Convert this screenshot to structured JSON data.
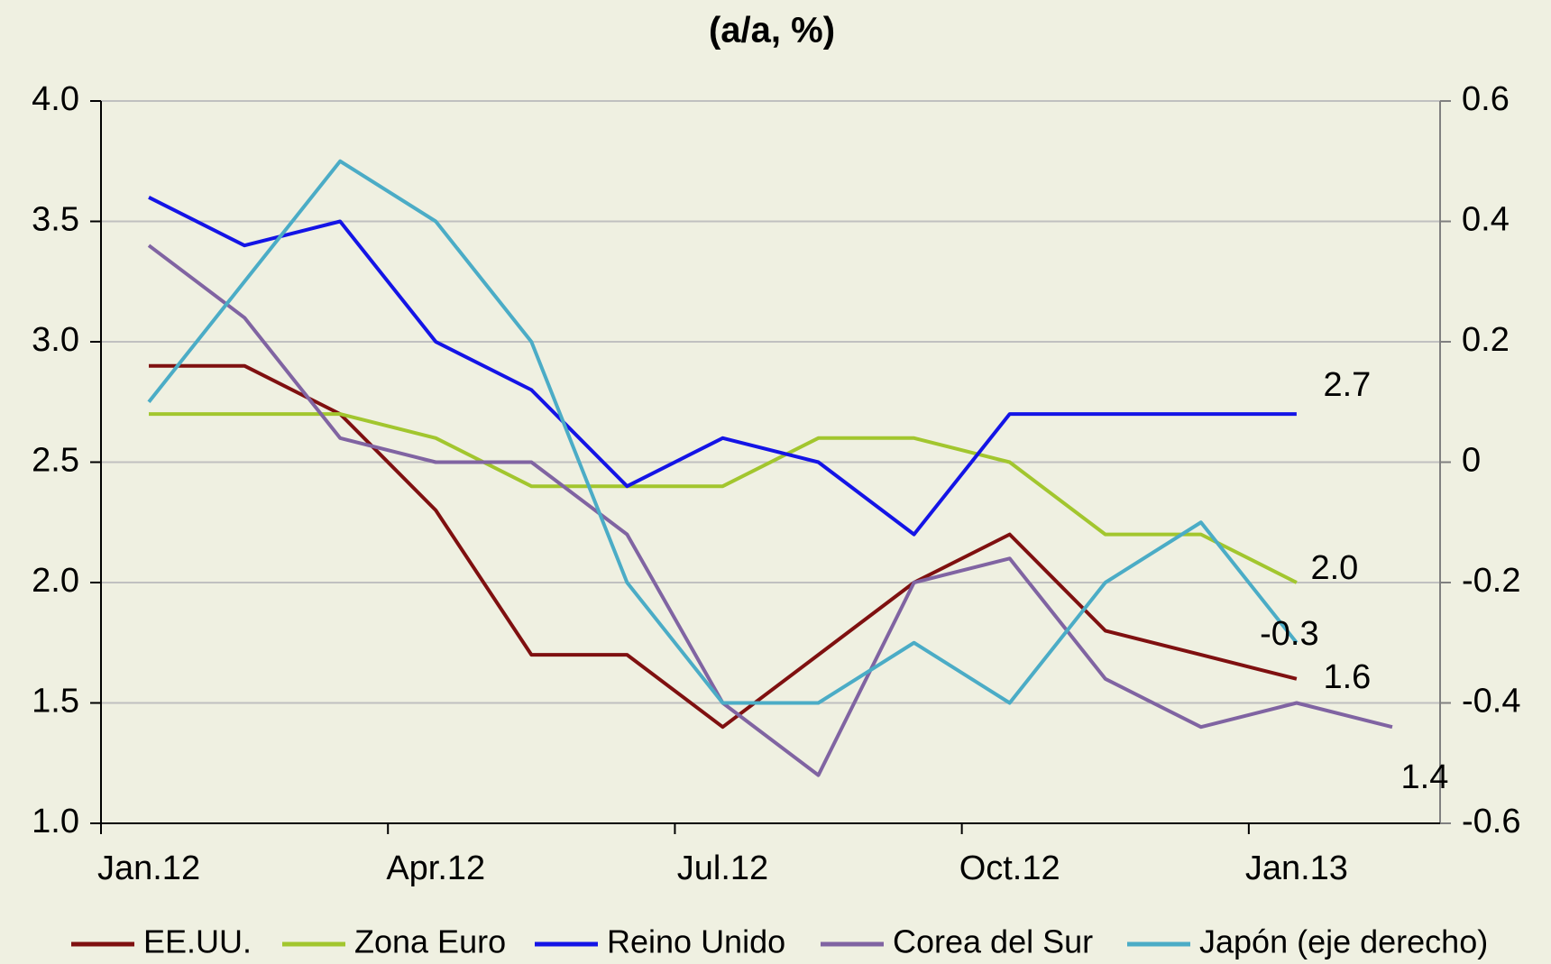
{
  "chart_data": {
    "type": "line",
    "title": "(a/a, %)",
    "categories": [
      "Jan.12",
      null,
      null,
      "Apr.12",
      null,
      null,
      "Jul.12",
      null,
      null,
      "Oct.12",
      null,
      null,
      "Jan.13",
      null
    ],
    "ylim": [
      1.0,
      4.0
    ],
    "yticks": [
      {
        "value": 1,
        "label": "1.0"
      },
      1.5,
      {
        "value": 2,
        "label": "2.0"
      },
      2.5,
      {
        "value": 3,
        "label": "3.0"
      },
      3.5,
      {
        "value": 4,
        "label": "4.0"
      }
    ],
    "y2lim": [
      -0.6,
      0.6
    ],
    "y2ticks": [
      -0.6,
      -0.4,
      -0.2,
      0,
      0.2,
      0.4,
      0.6
    ],
    "grid": true,
    "legend": "bottom",
    "series": [
      {
        "name": "EE.UU.",
        "color": "#7f1010",
        "values": [
          2.9,
          2.9,
          2.7,
          2.3,
          1.7,
          1.7,
          1.4,
          1.7,
          2.0,
          2.2,
          1.8,
          1.7,
          1.6,
          null
        ],
        "value_labels": [
          null,
          null,
          null,
          null,
          null,
          null,
          null,
          null,
          null,
          null,
          null,
          null,
          "1.6",
          null
        ]
      },
      {
        "name": "Zona Euro",
        "color": "#a2c62e",
        "values": [
          2.7,
          2.7,
          2.7,
          2.6,
          2.4,
          2.4,
          2.4,
          2.6,
          2.6,
          2.5,
          2.2,
          2.2,
          2.0,
          null
        ],
        "value_labels": [
          null,
          null,
          null,
          null,
          null,
          null,
          null,
          null,
          null,
          null,
          null,
          null,
          "2.0",
          null
        ]
      },
      {
        "name": "Reino Unido",
        "color": "#1414e6",
        "values": [
          3.6,
          3.4,
          3.5,
          3.0,
          2.8,
          2.4,
          2.6,
          2.5,
          2.2,
          2.7,
          2.7,
          2.7,
          2.7,
          null
        ],
        "value_labels": [
          null,
          null,
          null,
          null,
          null,
          null,
          null,
          null,
          null,
          null,
          null,
          null,
          "2.7",
          null
        ]
      },
      {
        "name": "Corea del Sur",
        "color": "#8064a2",
        "values": [
          3.4,
          3.1,
          2.6,
          2.5,
          2.5,
          2.2,
          1.5,
          1.2,
          2.0,
          2.1,
          1.6,
          1.4,
          1.5,
          1.4
        ],
        "value_labels": [
          null,
          null,
          null,
          null,
          null,
          null,
          null,
          null,
          null,
          null,
          null,
          null,
          null,
          "1.4"
        ]
      },
      {
        "name": "Japón (eje derecho)",
        "color": "#4bacc6",
        "axis": "y2",
        "values": [
          0.1,
          0.3,
          0.5,
          0.4,
          0.2,
          -0.2,
          -0.4,
          -0.4,
          -0.3,
          -0.4,
          -0.2,
          -0.1,
          -0.3,
          null
        ],
        "value_labels": [
          null,
          null,
          null,
          null,
          null,
          null,
          null,
          null,
          null,
          null,
          null,
          null,
          "-0.3",
          null
        ]
      }
    ]
  }
}
